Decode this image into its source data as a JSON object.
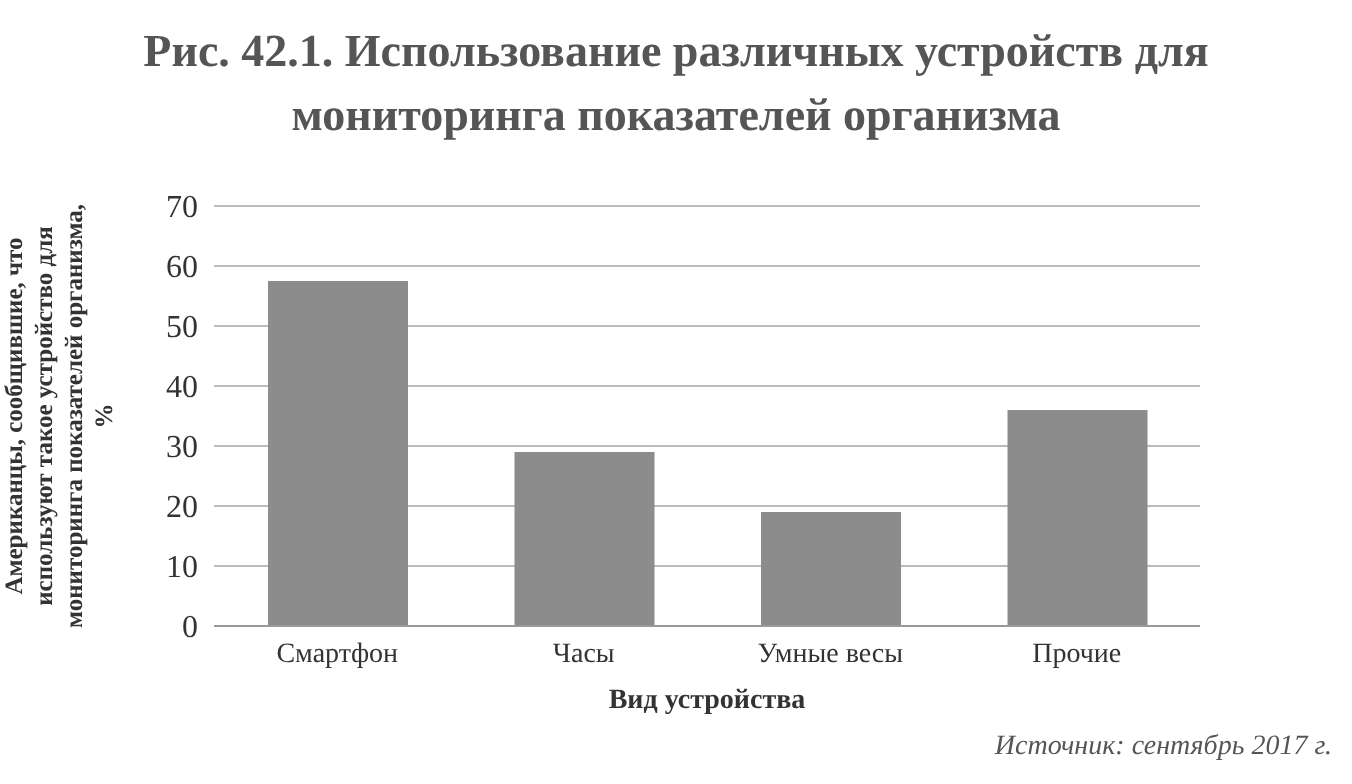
{
  "chart_data": {
    "type": "bar",
    "title": "Рис. 42.1. Использование различных устройств для мониторинга показателей организма",
    "xlabel": "Вид устройства",
    "ylabel": "Американцы, сообщившие, что используют такое устройство для мониторинга показателей организма, %",
    "categories": [
      "Смартфон",
      "Часы",
      "Умные весы",
      "Прочие"
    ],
    "values": [
      57.5,
      29,
      19,
      36
    ],
    "color": "#8c8c8c",
    "ylim": [
      0,
      70
    ],
    "yticks": [
      0,
      10,
      20,
      30,
      40,
      50,
      60,
      70
    ],
    "grid": "y",
    "annotations": [
      "Источник: сентябрь 2017 г."
    ]
  }
}
